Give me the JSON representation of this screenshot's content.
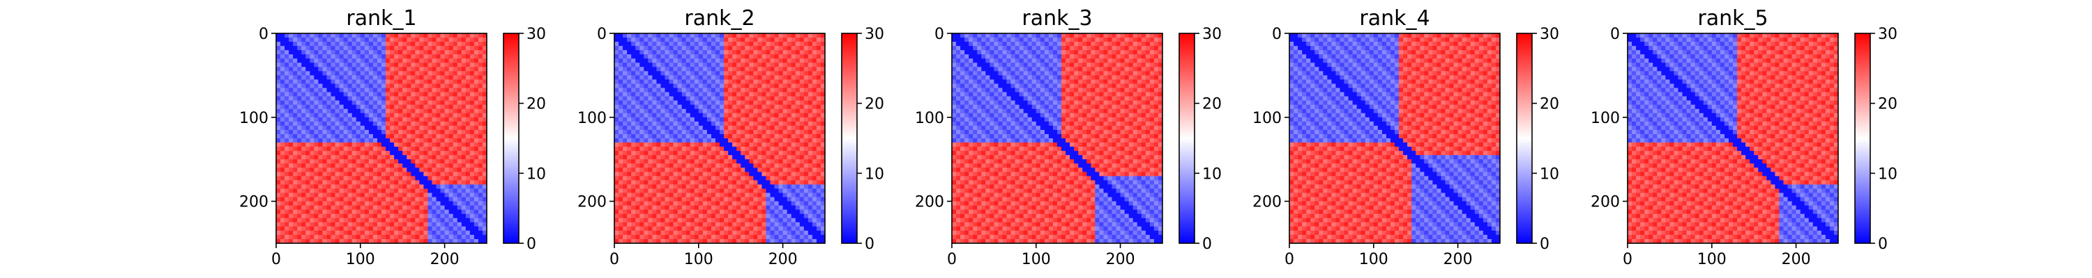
{
  "chart_data": [
    {
      "type": "heatmap",
      "title": "rank_1",
      "matrix_size": 250,
      "xlim": [
        0,
        250
      ],
      "ylim": [
        0,
        250
      ],
      "y_inverted": true,
      "xticks": [
        0,
        100,
        200
      ],
      "yticks": [
        0,
        100,
        200
      ],
      "colorbar": {
        "min": 0,
        "max": 30,
        "ticks": [
          0,
          10,
          20,
          30
        ],
        "colormap": "bwr"
      },
      "domains": [
        [
          0,
          28
        ],
        [
          32,
          52
        ],
        [
          58,
          82
        ],
        [
          88,
          130
        ],
        [
          180,
          250
        ]
      ],
      "domain_value": 4,
      "background_value": 28
    },
    {
      "type": "heatmap",
      "title": "rank_2",
      "matrix_size": 250,
      "xlim": [
        0,
        250
      ],
      "ylim": [
        0,
        250
      ],
      "y_inverted": true,
      "xticks": [
        0,
        100,
        200
      ],
      "yticks": [
        0,
        100,
        200
      ],
      "colorbar": {
        "min": 0,
        "max": 30,
        "ticks": [
          0,
          10,
          20,
          30
        ],
        "colormap": "bwr"
      },
      "domains": [
        [
          0,
          28
        ],
        [
          32,
          52
        ],
        [
          58,
          82
        ],
        [
          88,
          130
        ],
        [
          180,
          250
        ]
      ],
      "domain_value": 4,
      "background_value": 28
    },
    {
      "type": "heatmap",
      "title": "rank_3",
      "matrix_size": 250,
      "xlim": [
        0,
        250
      ],
      "ylim": [
        0,
        250
      ],
      "y_inverted": true,
      "xticks": [
        0,
        100,
        200
      ],
      "yticks": [
        0,
        100,
        200
      ],
      "colorbar": {
        "min": 0,
        "max": 30,
        "ticks": [
          0,
          10,
          20,
          30
        ],
        "colormap": "bwr"
      },
      "domains": [
        [
          0,
          28
        ],
        [
          32,
          52
        ],
        [
          58,
          82
        ],
        [
          88,
          130
        ],
        [
          172,
          250
        ]
      ],
      "domain_value": 4,
      "background_value": 28
    },
    {
      "type": "heatmap",
      "title": "rank_4",
      "matrix_size": 250,
      "xlim": [
        0,
        250
      ],
      "ylim": [
        0,
        250
      ],
      "y_inverted": true,
      "xticks": [
        0,
        100,
        200
      ],
      "yticks": [
        0,
        100,
        200
      ],
      "colorbar": {
        "min": 0,
        "max": 30,
        "ticks": [
          0,
          10,
          20,
          30
        ],
        "colormap": "bwr"
      },
      "domains": [
        [
          0,
          28
        ],
        [
          32,
          52
        ],
        [
          58,
          82
        ],
        [
          88,
          130
        ],
        [
          145,
          250
        ]
      ],
      "domain_value": 4,
      "background_value": 28
    },
    {
      "type": "heatmap",
      "title": "rank_5",
      "matrix_size": 250,
      "xlim": [
        0,
        250
      ],
      "ylim": [
        0,
        250
      ],
      "y_inverted": true,
      "xticks": [
        0,
        100,
        200
      ],
      "yticks": [
        0,
        100,
        200
      ],
      "colorbar": {
        "min": 0,
        "max": 30,
        "ticks": [
          0,
          10,
          20,
          30
        ],
        "colormap": "bwr"
      },
      "domains": [
        [
          0,
          28
        ],
        [
          32,
          52
        ],
        [
          58,
          82
        ],
        [
          88,
          130
        ],
        [
          180,
          250
        ]
      ],
      "domain_value": 4,
      "background_value": 28
    }
  ],
  "colors": {
    "low": "#0000ff",
    "mid": "#ffffff",
    "high": "#ff0000"
  }
}
